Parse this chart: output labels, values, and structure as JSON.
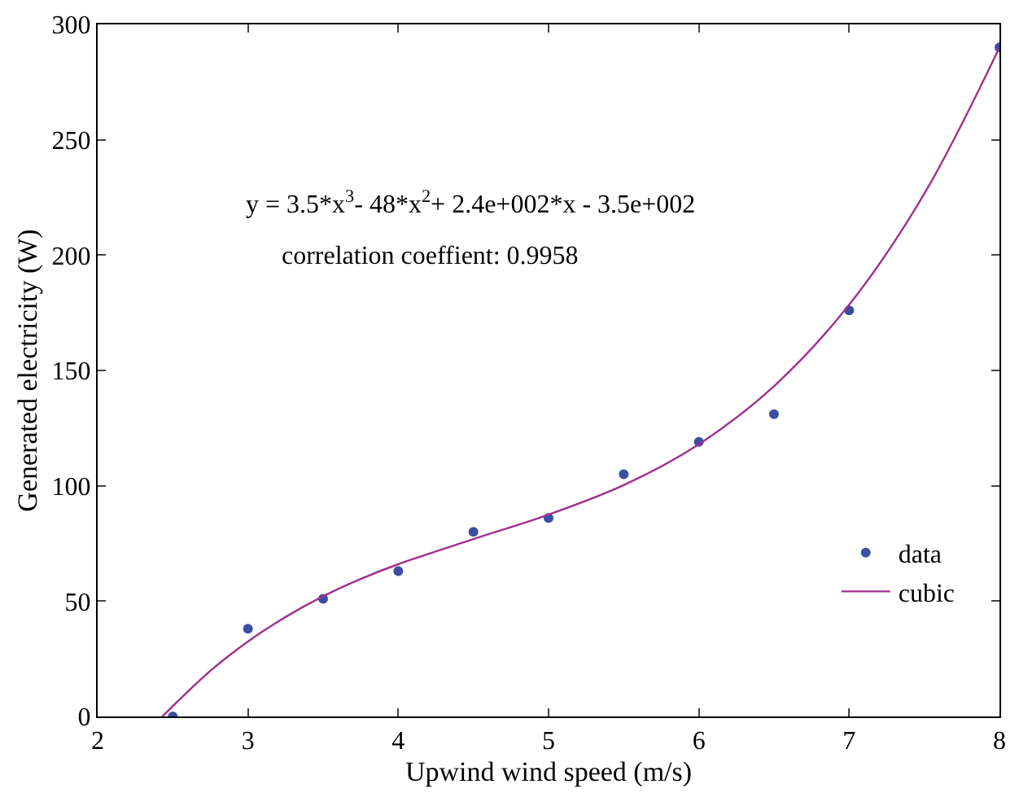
{
  "chart_data": {
    "type": "scatter",
    "xlabel": "Upwind wind speed (m/s)",
    "ylabel": "Generated electricity (W)",
    "xlim": [
      2,
      8
    ],
    "xticks": [
      2,
      3,
      4,
      5,
      6,
      7,
      8
    ],
    "ylim": [
      0,
      300
    ],
    "yticks": [
      0,
      50,
      100,
      150,
      200,
      250,
      300
    ],
    "legend": "bottom right",
    "annotations": [
      "y = 3.5*x$^{3}$- 48*x$^{2}$+ 2.4e+002*x - 3.5e+002",
      "correlation coeffient: 0.9958"
    ],
    "series": [
      {
        "name": "data",
        "marker": "circle",
        "color": "#3a4fa0",
        "x": [
          2.5,
          3,
          3.5,
          4,
          4.5,
          5,
          5.5,
          6,
          6.5,
          7,
          8
        ],
        "values": [
          0,
          38,
          51,
          63,
          80,
          86,
          105,
          119,
          131,
          176,
          290
        ]
      },
      {
        "name": "cubic",
        "type": "line",
        "marker": "none",
        "line_style": "solid",
        "color": "#a0308f",
        "x": [
          2.43,
          2.75,
          3,
          3.25,
          3.5,
          3.75,
          4,
          4.5,
          5,
          5.5,
          6,
          6.5,
          7,
          7.5,
          8
        ],
        "values": [
          0,
          19.8,
          32.5,
          43.1,
          52.1,
          59.6,
          66,
          76.9,
          87.5,
          100.3,
          118,
          143.2,
          178.5,
          226.6,
          290
        ]
      }
    ]
  }
}
